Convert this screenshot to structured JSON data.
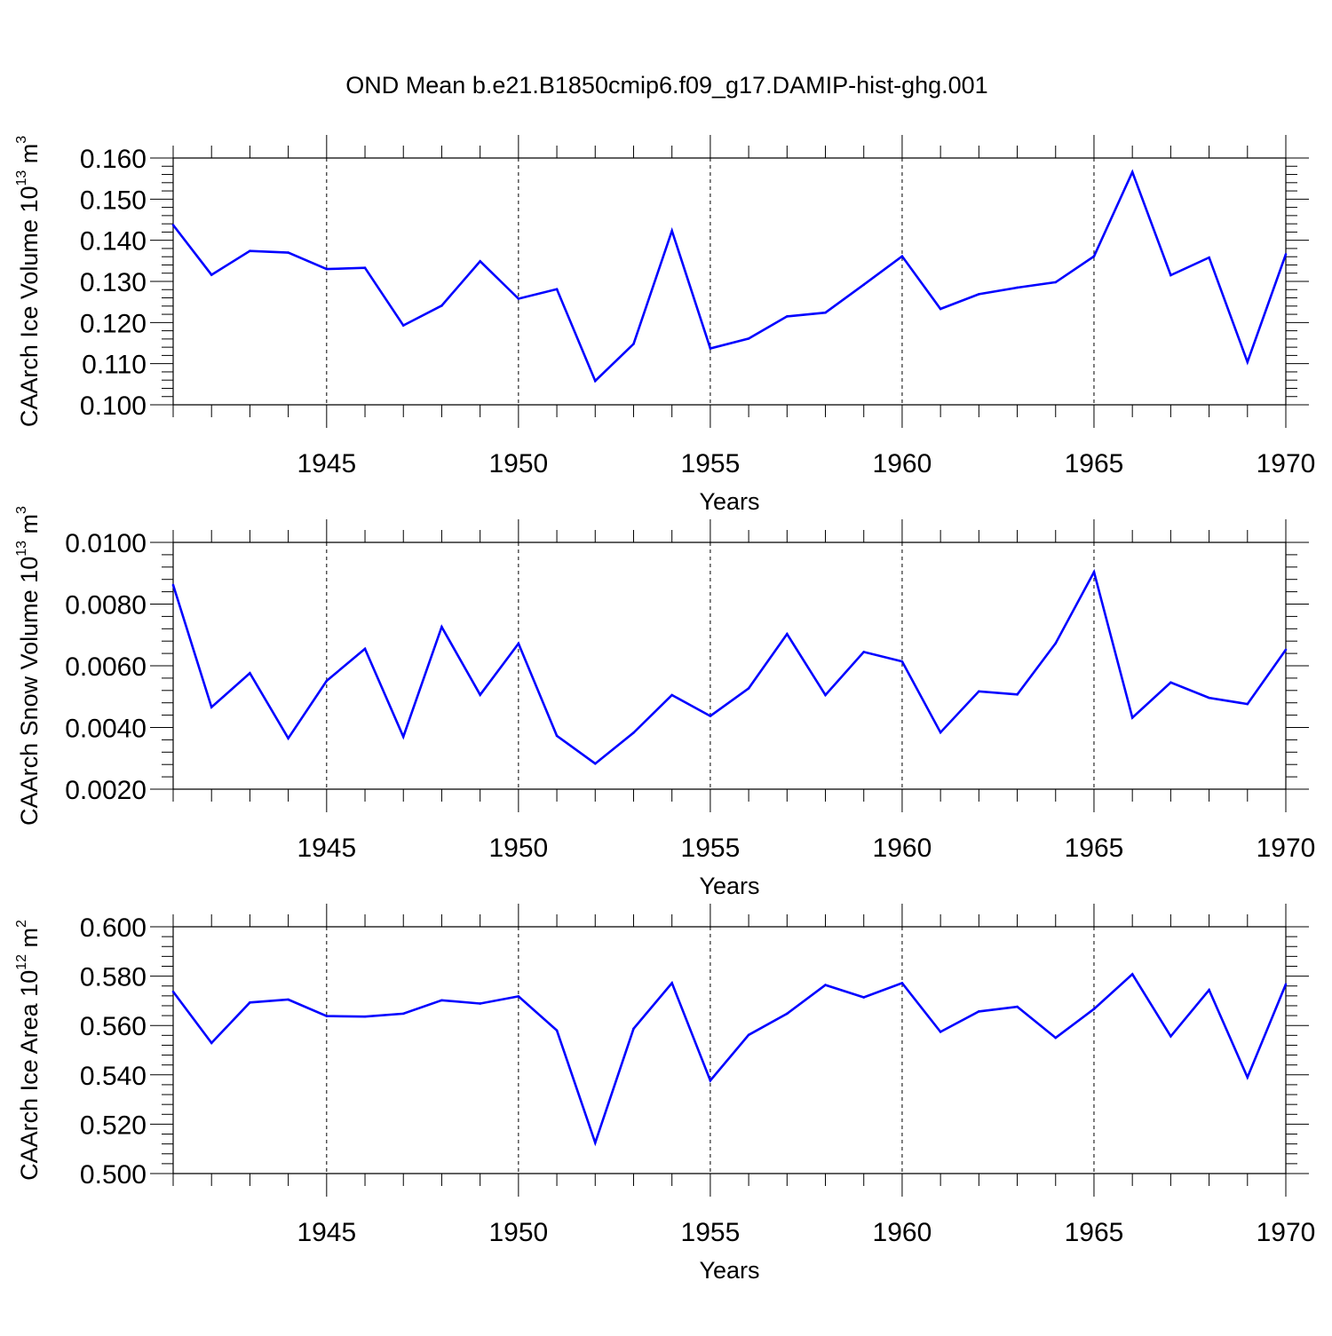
{
  "title": "OND Mean b.e21.B1850cmip6.f09_g17.DAMIP-hist-ghg.001",
  "line_color": "#0000ff",
  "chart_data": [
    {
      "type": "line",
      "title": "OND Mean b.e21.B1850cmip6.f09_g17.DAMIP-hist-ghg.001",
      "ylabel_text": "CAArch Ice Volume 10",
      "ylabel_exp": "13",
      "ylabel_unit": " m",
      "ylabel_unit_exp": "3",
      "xlabel": "Years",
      "xlim": [
        1941,
        1970
      ],
      "ylim": [
        0.1,
        0.16
      ],
      "yticks": [
        "0.100",
        "0.110",
        "0.120",
        "0.130",
        "0.140",
        "0.150",
        "0.160"
      ],
      "ytick_values": [
        0.1,
        0.11,
        0.12,
        0.13,
        0.14,
        0.15,
        0.16
      ],
      "xticks": [
        "1945",
        "1950",
        "1955",
        "1960",
        "1965",
        "1970"
      ],
      "xtick_values": [
        1945,
        1950,
        1955,
        1960,
        1965,
        1970
      ],
      "x": [
        1941,
        1942,
        1943,
        1944,
        1945,
        1946,
        1947,
        1948,
        1949,
        1950,
        1951,
        1952,
        1953,
        1954,
        1955,
        1956,
        1957,
        1958,
        1959,
        1960,
        1961,
        1962,
        1963,
        1964,
        1965,
        1966,
        1967,
        1968,
        1969,
        1970
      ],
      "values": [
        0.1437,
        0.1316,
        0.1374,
        0.137,
        0.133,
        0.1333,
        0.1193,
        0.1241,
        0.1349,
        0.1258,
        0.1281,
        0.1058,
        0.1148,
        0.1423,
        0.1137,
        0.1161,
        0.1215,
        0.1224,
        0.1292,
        0.1361,
        0.1233,
        0.1269,
        0.1285,
        0.1298,
        0.1361,
        0.1566,
        0.1315,
        0.1358,
        0.1104,
        0.1366
      ]
    },
    {
      "type": "line",
      "title": "",
      "ylabel_text": "CAArch Snow Volume 10",
      "ylabel_exp": "13",
      "ylabel_unit": " m",
      "ylabel_unit_exp": "3",
      "xlabel": "Years",
      "xlim": [
        1941,
        1970
      ],
      "ylim": [
        0.002,
        0.01
      ],
      "yticks": [
        "0.0020",
        "0.0040",
        "0.0060",
        "0.0080",
        "0.0100"
      ],
      "ytick_values": [
        0.002,
        0.004,
        0.006,
        0.008,
        0.01
      ],
      "xticks": [
        "1945",
        "1950",
        "1955",
        "1960",
        "1965",
        "1970"
      ],
      "xtick_values": [
        1945,
        1950,
        1955,
        1960,
        1965,
        1970
      ],
      "x": [
        1941,
        1942,
        1943,
        1944,
        1945,
        1946,
        1947,
        1948,
        1949,
        1950,
        1951,
        1952,
        1953,
        1954,
        1955,
        1956,
        1957,
        1958,
        1959,
        1960,
        1961,
        1962,
        1963,
        1964,
        1965,
        1966,
        1967,
        1968,
        1969,
        1970
      ],
      "values": [
        0.00862,
        0.00466,
        0.00576,
        0.00365,
        0.00551,
        0.00655,
        0.0037,
        0.00726,
        0.00506,
        0.00672,
        0.00373,
        0.00283,
        0.00383,
        0.00505,
        0.00437,
        0.00527,
        0.00703,
        0.00505,
        0.00645,
        0.00614,
        0.00384,
        0.00517,
        0.00507,
        0.00673,
        0.00904,
        0.00432,
        0.00546,
        0.00496,
        0.00476,
        0.00652
      ]
    },
    {
      "type": "line",
      "title": "",
      "ylabel_text": "CAArch Ice Area 10",
      "ylabel_exp": "12",
      "ylabel_unit": " m",
      "ylabel_unit_exp": "2",
      "xlabel": "Years",
      "xlim": [
        1941,
        1970
      ],
      "ylim": [
        0.5,
        0.6
      ],
      "yticks": [
        "0.500",
        "0.520",
        "0.540",
        "0.560",
        "0.580",
        "0.600"
      ],
      "ytick_values": [
        0.5,
        0.52,
        0.54,
        0.56,
        0.58,
        0.6
      ],
      "xticks": [
        "1945",
        "1950",
        "1955",
        "1960",
        "1965",
        "1970"
      ],
      "xtick_values": [
        1945,
        1950,
        1955,
        1960,
        1965,
        1970
      ],
      "x": [
        1941,
        1942,
        1943,
        1944,
        1945,
        1946,
        1947,
        1948,
        1949,
        1950,
        1951,
        1952,
        1953,
        1954,
        1955,
        1956,
        1957,
        1958,
        1959,
        1960,
        1961,
        1962,
        1963,
        1964,
        1965,
        1966,
        1967,
        1968,
        1969,
        1970
      ],
      "values": [
        0.5737,
        0.5529,
        0.5693,
        0.5705,
        0.5638,
        0.5636,
        0.5648,
        0.5702,
        0.5689,
        0.5718,
        0.558,
        0.5125,
        0.5587,
        0.5772,
        0.5377,
        0.5562,
        0.5648,
        0.5764,
        0.5714,
        0.5772,
        0.5574,
        0.5657,
        0.5676,
        0.555,
        0.5667,
        0.5808,
        0.5556,
        0.5744,
        0.539,
        0.5767
      ]
    }
  ]
}
